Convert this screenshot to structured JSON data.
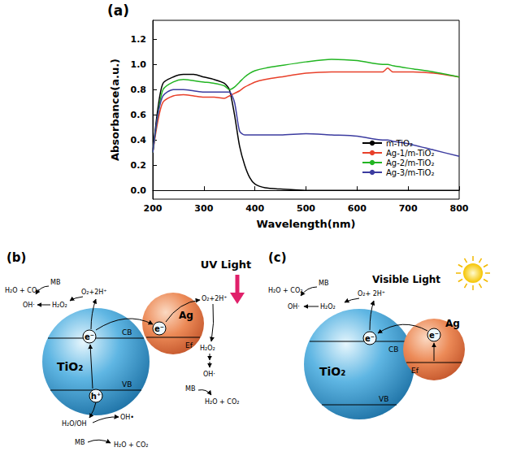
{
  "chart_data": {
    "type": "line",
    "panel_label": "(a)",
    "x_label": "Wavelength(nm)",
    "y_label": "Absorbance(a.u.)",
    "x": [
      200,
      210,
      220,
      240,
      260,
      280,
      300,
      320,
      340,
      350,
      360,
      370,
      380,
      390,
      400,
      420,
      450,
      500,
      550,
      600,
      650,
      660,
      670,
      700,
      750,
      800
    ],
    "series": [
      {
        "name": "m-TiO₂",
        "color": "#000000",
        "values": [
          0.3,
          0.65,
          0.85,
          0.9,
          0.92,
          0.92,
          0.9,
          0.88,
          0.85,
          0.8,
          0.6,
          0.35,
          0.2,
          0.1,
          0.05,
          0.02,
          0.01,
          0,
          0,
          0,
          0,
          0,
          0,
          0,
          0,
          0
        ]
      },
      {
        "name": "Ag-1/m-TiO₂",
        "color": "#e8402a",
        "values": [
          0.3,
          0.55,
          0.7,
          0.75,
          0.76,
          0.75,
          0.74,
          0.74,
          0.73,
          0.75,
          0.77,
          0.79,
          0.82,
          0.84,
          0.86,
          0.88,
          0.9,
          0.93,
          0.94,
          0.94,
          0.94,
          0.97,
          0.94,
          0.94,
          0.93,
          0.9
        ]
      },
      {
        "name": "Ag-2/m-TiO₂",
        "color": "#22b522",
        "values": [
          0.3,
          0.6,
          0.8,
          0.86,
          0.88,
          0.87,
          0.86,
          0.85,
          0.83,
          0.8,
          0.82,
          0.86,
          0.9,
          0.93,
          0.95,
          0.97,
          0.99,
          1.02,
          1.04,
          1.03,
          1.0,
          1.0,
          0.99,
          0.97,
          0.94,
          0.9
        ]
      },
      {
        "name": "Ag-3/m-TiO₂",
        "color": "#3c3ca0",
        "values": [
          0.3,
          0.6,
          0.75,
          0.8,
          0.8,
          0.79,
          0.78,
          0.78,
          0.78,
          0.78,
          0.7,
          0.47,
          0.44,
          0.44,
          0.44,
          0.44,
          0.44,
          0.45,
          0.44,
          0.43,
          0.4,
          0.4,
          0.39,
          0.37,
          0.32,
          0.27
        ]
      }
    ],
    "xlim": [
      200,
      800
    ],
    "xticks": [
      200,
      300,
      400,
      500,
      600,
      700,
      800
    ],
    "ylim": [
      -0.07,
      1.35
    ],
    "yticks": [
      {
        "value": 0,
        "label": "0.0"
      },
      0.2,
      0.4,
      0.6,
      0.8,
      {
        "value": 1,
        "label": "1.0"
      },
      1.2
    ],
    "grid": false,
    "legend": "right",
    "marker": "none",
    "line_style": "solid"
  },
  "diagrams": [
    {
      "panel_label": "(b)",
      "light": "UV Light",
      "semiconductor": {
        "name": "TiO₂",
        "cb": "CB",
        "vb": "VB",
        "electron": "e⁻",
        "hole": "h⁺"
      },
      "metal": {
        "name": "Ag",
        "electron": "e⁻",
        "fermi": "Ef"
      },
      "surface_reaction": {
        "products": "H₂O + CO₂",
        "dye": "MB",
        "radical": "OH·",
        "peroxide": "H₂O₂",
        "reactants": "O₂+2H⁺"
      },
      "metal_reaction": {
        "reactants": "O₂+2H⁺",
        "peroxide": "H₂O₂",
        "radical": "OH·",
        "dye": "MB",
        "products": "H₂O + CO₂"
      },
      "hole_reaction": {
        "donor": "H₂O/OH",
        "radical": "OH•",
        "dye": "MB",
        "products": "H₂O + CO₂"
      }
    },
    {
      "panel_label": "(c)",
      "light": "Visible Light",
      "semiconductor": {
        "name": "TiO₂",
        "cb": "CB",
        "vb": "VB",
        "electron": "e⁻"
      },
      "metal": {
        "name": "Ag",
        "electron": "e⁻",
        "fermi": "Ef"
      },
      "surface_reaction": {
        "products": "H₂O + CO₂",
        "dye": "MB",
        "radical": "OH·",
        "peroxide": "H₂O₂",
        "reactants": "O₂+ 2H⁺"
      }
    }
  ]
}
